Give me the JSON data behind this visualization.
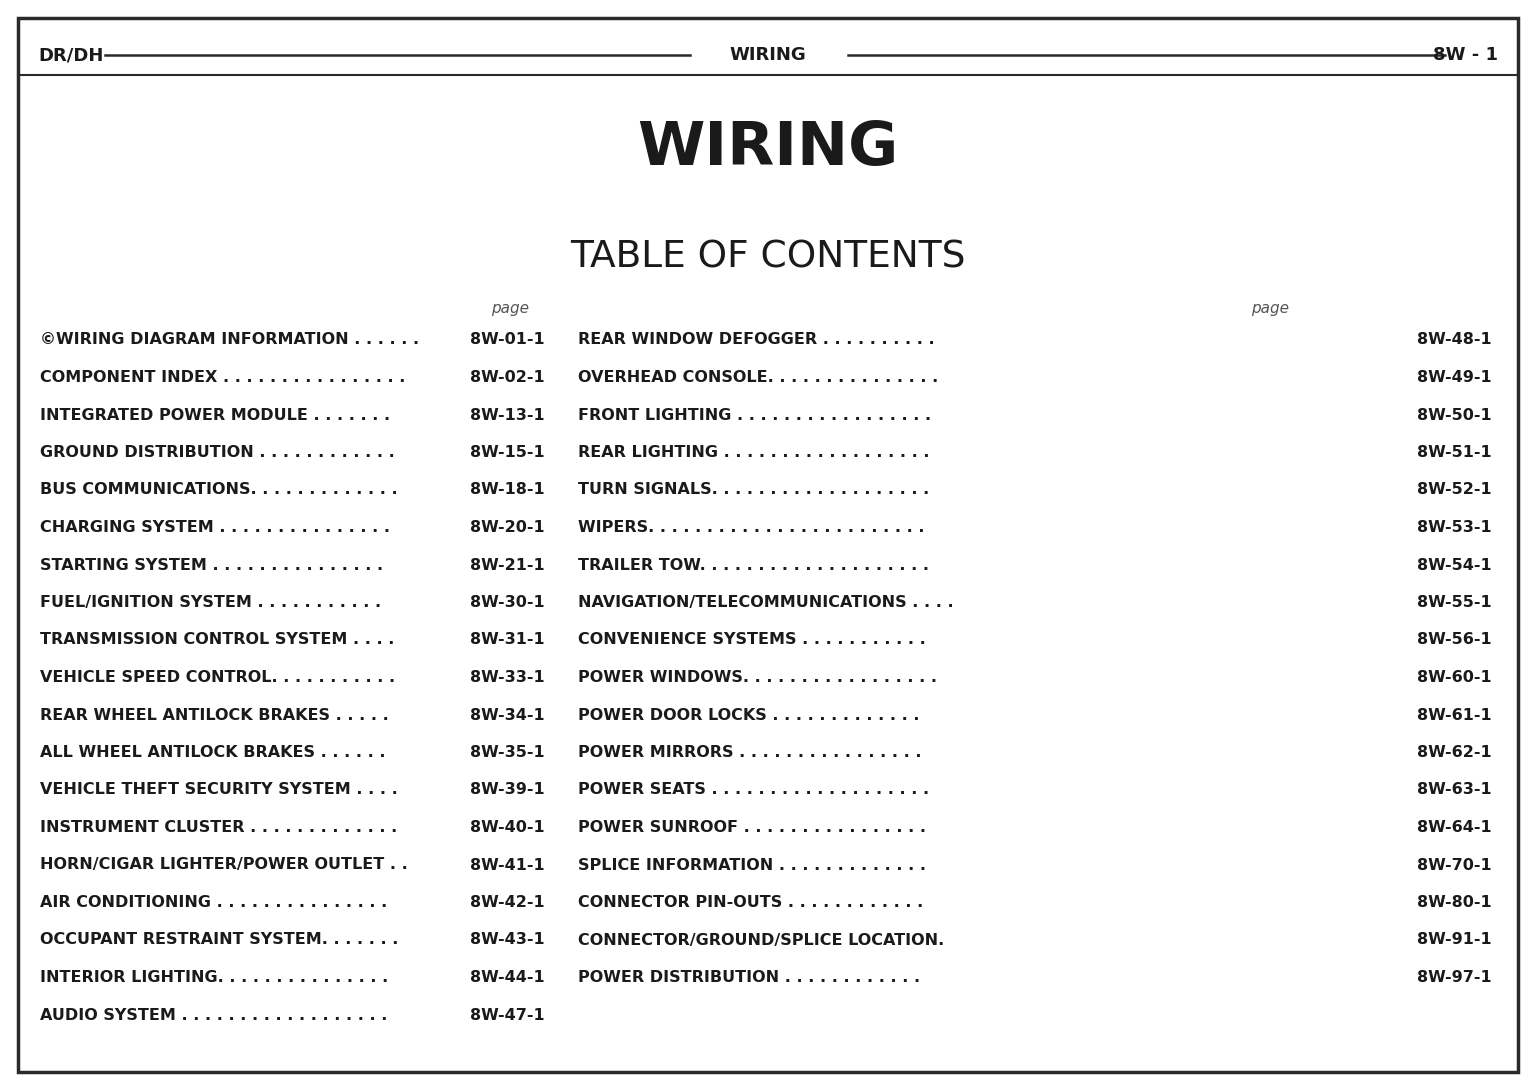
{
  "header_left": "DR/DH",
  "header_center": "WIRING",
  "header_right": "8W - 1",
  "main_title": "WIRING",
  "toc_title": "TABLE OF CONTENTS",
  "page_label": "page",
  "left_entries": [
    [
      "©WIRING DIAGRAM INFORMATION . . . . . .",
      "8W-01-1"
    ],
    [
      "COMPONENT INDEX . . . . . . . . . . . . . . . .",
      "8W-02-1"
    ],
    [
      "INTEGRATED POWER MODULE . . . . . . .",
      "8W-13-1"
    ],
    [
      "GROUND DISTRIBUTION . . . . . . . . . . . .",
      "8W-15-1"
    ],
    [
      "BUS COMMUNICATIONS. . . . . . . . . . . . .",
      "8W-18-1"
    ],
    [
      "CHARGING SYSTEM . . . . . . . . . . . . . . .",
      "8W-20-1"
    ],
    [
      "STARTING SYSTEM . . . . . . . . . . . . . . .",
      "8W-21-1"
    ],
    [
      "FUEL/IGNITION SYSTEM . . . . . . . . . . .",
      "8W-30-1"
    ],
    [
      "TRANSMISSION CONTROL SYSTEM . . . .",
      "8W-31-1"
    ],
    [
      "VEHICLE SPEED CONTROL. . . . . . . . . . .",
      "8W-33-1"
    ],
    [
      "REAR WHEEL ANTILOCK BRAKES . . . . .",
      "8W-34-1"
    ],
    [
      "ALL WHEEL ANTILOCK BRAKES . . . . . .",
      "8W-35-1"
    ],
    [
      "VEHICLE THEFT SECURITY SYSTEM . . . .",
      "8W-39-1"
    ],
    [
      "INSTRUMENT CLUSTER . . . . . . . . . . . . .",
      "8W-40-1"
    ],
    [
      "HORN/CIGAR LIGHTER/POWER OUTLET . .",
      "8W-41-1"
    ],
    [
      "AIR CONDITIONING . . . . . . . . . . . . . . .",
      "8W-42-1"
    ],
    [
      "OCCUPANT RESTRAINT SYSTEM. . . . . . .",
      "8W-43-1"
    ],
    [
      "INTERIOR LIGHTING. . . . . . . . . . . . . . .",
      "8W-44-1"
    ],
    [
      "AUDIO SYSTEM . . . . . . . . . . . . . . . . . .",
      "8W-47-1"
    ]
  ],
  "right_entries": [
    [
      "REAR WINDOW DEFOGGER . . . . . . . . . .",
      "8W-48-1"
    ],
    [
      "OVERHEAD CONSOLE. . . . . . . . . . . . . . .",
      "8W-49-1"
    ],
    [
      "FRONT LIGHTING . . . . . . . . . . . . . . . . .",
      "8W-50-1"
    ],
    [
      "REAR LIGHTING . . . . . . . . . . . . . . . . . .",
      "8W-51-1"
    ],
    [
      "TURN SIGNALS. . . . . . . . . . . . . . . . . . .",
      "8W-52-1"
    ],
    [
      "WIPERS. . . . . . . . . . . . . . . . . . . . . . . .",
      "8W-53-1"
    ],
    [
      "TRAILER TOW. . . . . . . . . . . . . . . . . . . .",
      "8W-54-1"
    ],
    [
      "NAVIGATION/TELECOMMUNICATIONS . . . .",
      "8W-55-1"
    ],
    [
      "CONVENIENCE SYSTEMS . . . . . . . . . . .",
      "8W-56-1"
    ],
    [
      "POWER WINDOWS. . . . . . . . . . . . . . . . .",
      "8W-60-1"
    ],
    [
      "POWER DOOR LOCKS . . . . . . . . . . . . .",
      "8W-61-1"
    ],
    [
      "POWER MIRRORS . . . . . . . . . . . . . . . .",
      "8W-62-1"
    ],
    [
      "POWER SEATS . . . . . . . . . . . . . . . . . . .",
      "8W-63-1"
    ],
    [
      "POWER SUNROOF . . . . . . . . . . . . . . . .",
      "8W-64-1"
    ],
    [
      "SPLICE INFORMATION . . . . . . . . . . . . .",
      "8W-70-1"
    ],
    [
      "CONNECTOR PIN-OUTS . . . . . . . . . . . .",
      "8W-80-1"
    ],
    [
      "CONNECTOR/GROUND/SPLICE LOCATION.",
      "8W-91-1"
    ],
    [
      "POWER DISTRIBUTION . . . . . . . . . . . .",
      "8W-97-1"
    ]
  ],
  "bg_color": "#ffffff",
  "text_color": "#1a1a1a",
  "border_color": "#2a2a2a"
}
